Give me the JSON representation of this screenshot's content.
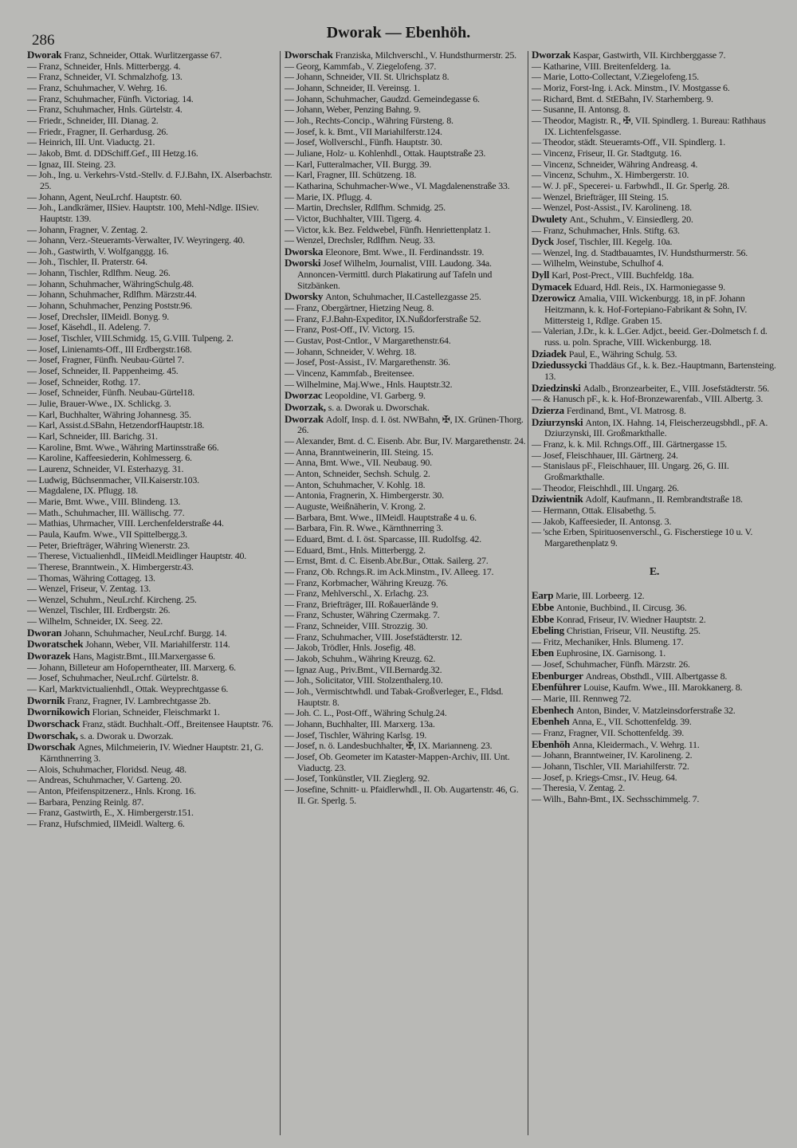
{
  "page_number": "286",
  "title": "Dworak — Ebenhöh.",
  "columns": [
    [
      {
        "h": "Dworak",
        "t": "Franz, Schneider, Ottak. Wurlitzergasse 67."
      },
      {
        "t": "— Franz, Schneider, Hnls. Mitterbergg. 4."
      },
      {
        "t": "— Franz, Schneider, VI. Schmalzhofg. 13."
      },
      {
        "t": "— Franz, Schuhmacher, V. Wehrg. 16."
      },
      {
        "t": "— Franz, Schuhmacher, Fünfh. Victoriag. 14."
      },
      {
        "t": "— Franz, Schuhmacher, Hnls. Gürtelstr. 4."
      },
      {
        "t": "— Friedr., Schneider, III. Dianag. 2."
      },
      {
        "t": "— Friedr., Fragner, II. Gerhardusg. 26."
      },
      {
        "t": "— Heinrich, III. Unt. Viaductg. 21."
      },
      {
        "t": "— Jakob, Bmt. d. DDSchiff.Gef., III Hetzg.16."
      },
      {
        "t": "— Ignaz, III. Steing. 23."
      },
      {
        "t": "— Joh., Ing. u. Verkehrs-Vstd.-Stellv. d. F.J.Bahn, IX. Alserbachstr. 25."
      },
      {
        "t": "— Johann, Agent, NeuLrchf. Hauptstr. 60."
      },
      {
        "t": "— Joh., Landkrämer, IISiev. Hauptstr. 100, Mehl-Ndlge. IISiev. Hauptstr. 139."
      },
      {
        "t": "— Johann, Fragner, V. Zentag. 2."
      },
      {
        "t": "— Johann, Verz.-Steueramts-Verwalter, IV. Weyringerg. 40."
      },
      {
        "t": "— Joh., Gastwirth, V. Wolfganggg. 16."
      },
      {
        "t": "— Joh., Tischler, II. Praterstr. 64."
      },
      {
        "t": "— Johann, Tischler, Rdlfhm. Neug. 26."
      },
      {
        "t": "— Johann, Schuhmacher, WähringSchulg.48."
      },
      {
        "t": "— Johann, Schuhmacher, Rdlfhm. Märzstr.44."
      },
      {
        "t": "— Johann, Schuhmacher, Penzing Poststr.96."
      },
      {
        "t": "— Josef, Drechsler, IIMeidl. Bonyg. 9."
      },
      {
        "t": "— Josef, Käsehdl., II. Adeleng. 7."
      },
      {
        "t": "— Josef, Tischler, VIII.Schmidg. 15, G.VIII. Tulpeng. 2."
      },
      {
        "t": "— Josef, Linienamts-Off., III Erdbergstr.168."
      },
      {
        "t": "— Josef, Fragner, Fünfh. Neubau-Gürtel 7."
      },
      {
        "t": "— Josef, Schneider, II. Pappenheimg. 45."
      },
      {
        "t": "— Josef, Schneider, Rothg. 17."
      },
      {
        "t": "— Josef, Schneider, Fünfh. Neubau-Gürtel18."
      },
      {
        "t": "— Julie, Brauer-Wwe., IX. Schlickg. 3."
      },
      {
        "t": "— Karl, Buchhalter, Währing Johannesg. 35."
      },
      {
        "t": "— Karl, Assist.d.SBahn, HetzendorfHauptstr.18."
      },
      {
        "t": "— Karl, Schneider, III. Barichg. 31."
      },
      {
        "t": "— Karoline, Bmt. Wwe., Währing Martinsstraße 66."
      },
      {
        "t": "— Karoline, Kaffeesiederin, Kohlmesserg. 6."
      },
      {
        "t": "— Laurenz, Schneider, VI. Esterhazyg. 31."
      },
      {
        "t": "— Ludwig, Büchsenmacher, VII.Kaiserstr.103."
      },
      {
        "t": "— Magdalene, IX. Pflugg. 18."
      },
      {
        "t": "— Marie, Bmt. Wwe., VIII. Blindeng. 13."
      },
      {
        "t": "— Math., Schuhmacher, III. Wällischg. 77."
      },
      {
        "t": "— Mathias, Uhrmacher, VIII. Lerchenfelderstraße 44."
      },
      {
        "t": "— Paula, Kaufm. Wwe., VII Spittelbergg.3."
      },
      {
        "t": "— Peter, Briefträger, Währing Wienerstr. 23."
      },
      {
        "t": "— Therese, Victualienhdl., IIMeidl.Meidlinger Hauptstr. 40."
      },
      {
        "t": "— Therese, Branntwein., X. Himbergerstr.43."
      },
      {
        "t": "— Thomas, Währing Cottageg. 13."
      },
      {
        "t": "— Wenzel, Friseur, V. Zentag. 13."
      },
      {
        "t": "— Wenzel, Schuhm., NeuLrchf. Kircheng. 25."
      },
      {
        "t": "— Wenzel, Tischler, III. Erdbergstr. 26."
      },
      {
        "t": "— Wilhelm, Schneider, IX. Seeg. 22."
      },
      {
        "h": "Dworan",
        "t": "Johann, Schuhmacher, NeuLrchf. Burgg. 14."
      },
      {
        "h": "Dworatschek",
        "t": "Johann, Weber, VII. Mariahilferstr. 114."
      },
      {
        "h": "Dworazek",
        "t": "Hans, Magistr.Bmt., III.Marxergasse 6."
      },
      {
        "t": "— Johann, Billeteur am Hofoperntheater, III. Marxerg. 6."
      },
      {
        "t": "— Josef, Schuhmacher, NeuLrchf. Gürtelstr. 8."
      },
      {
        "t": "— Karl, Marktvictualienhdl., Ottak. Weyprechtgasse 6."
      },
      {
        "h": "Dwornik",
        "t": "Franz, Fragner, IV. Lambrechtgasse 2b."
      },
      {
        "h": "Dwornikowich",
        "t": "Florian, Schneider, Fleischmarkt 1."
      },
      {
        "h": "Dworschack",
        "t": "Franz, städt. Buchhalt.-Off., Breitensee Hauptstr. 76."
      },
      {
        "h": "Dworschak,",
        "t": "s. a. Dworak u. Dworzak."
      },
      {
        "h": "Dworschak",
        "t": "Agnes, Milchmeierin, IV. Wiedner Hauptstr. 21, G. Kärnthnerring 3."
      },
      {
        "t": "— Alois, Schuhmacher, Floridsd. Neug. 48."
      },
      {
        "t": "— Andreas, Schuhmacher, V. Garteng. 20."
      },
      {
        "t": "— Anton, Pfeifenspitzenerz., Hnls. Krong. 16."
      },
      {
        "t": "— Barbara, Penzing Reinlg. 87."
      },
      {
        "t": "— Franz, Gastwirth, E., X. Himbergerstr.151."
      },
      {
        "t": "— Franz, Hufschmied, IIMeidl. Walterg. 6."
      }
    ],
    [
      {
        "h": "Dworschak",
        "t": "Franziska, Milchverschl., V. Hundsthurmerstr. 25."
      },
      {
        "t": "— Georg, Kammfab., V. Ziegelofeng. 37."
      },
      {
        "t": "— Johann, Schneider, VII. St. Ulrichsplatz 8."
      },
      {
        "t": "— Johann, Schneider, II. Vereinsg. 1."
      },
      {
        "t": "— Johann, Schuhmacher, Gaudzd. Gemeindegasse 6."
      },
      {
        "t": "— Johann, Weber, Penzing Bahng. 9."
      },
      {
        "t": "— Joh., Rechts-Concip., Währing Fürsteng. 8."
      },
      {
        "t": "— Josef, k. k. Bmt., VII Mariahilferstr.124."
      },
      {
        "t": "— Josef, Wollverschl., Fünfh. Hauptstr. 30."
      },
      {
        "t": "— Juliane, Holz- u. Kohlenhdl., Ottak. Hauptstraße 23."
      },
      {
        "t": "— Karl, Futteralmacher, VII. Burgg. 39."
      },
      {
        "t": "— Karl, Fragner, III. Schützeng. 18."
      },
      {
        "t": "— Katharina, Schuhmacher-Wwe., VI. Magdalenenstraße 33."
      },
      {
        "t": "— Marie, IX. Pflugg. 4."
      },
      {
        "t": "— Martin, Drechsler, Rdlfhm. Schmidg. 25."
      },
      {
        "t": "— Victor, Buchhalter, VIII. Tigerg. 4."
      },
      {
        "t": "— Victor, k.k. Bez. Feldwebel, Fünfh. Henriettenplatz 1."
      },
      {
        "t": "— Wenzel, Drechsler, Rdlfhm. Neug. 33."
      },
      {
        "h": "Dworska",
        "t": "Eleonore, Bmt. Wwe., II. Ferdinandsstr. 19."
      },
      {
        "h": "Dworski",
        "t": "Josef Wilhelm, Journalist, VIII. Laudong. 34a. Annoncen-Vermittl. durch Plakatirung auf Tafeln und Sitzbänken."
      },
      {
        "h": "Dworsky",
        "t": "Anton, Schuhmacher, II.Castellezgasse 25."
      },
      {
        "t": "— Franz, Obergärtner, Hietzing Neug. 8."
      },
      {
        "t": "— Franz, F.J.Bahn-Expeditor, IX.Nußdorferstraße 52."
      },
      {
        "t": "— Franz, Post-Off., IV. Victorg. 15."
      },
      {
        "t": "— Gustav, Post-Cntlor., V Margarethenstr.64."
      },
      {
        "t": "— Johann, Schneider, V. Wehrg. 18."
      },
      {
        "t": "— Josef, Post-Assist., IV. Margarethenstr. 36."
      },
      {
        "t": "— Vincenz, Kammfab., Breitensee."
      },
      {
        "t": "— Wilhelmine, Maj.Wwe., Hnls. Hauptstr.32."
      },
      {
        "h": "Dworzac",
        "t": "Leopoldine, VI. Garberg. 9."
      },
      {
        "h": "Dworzak,",
        "t": "s. a. Dworak u. Dworschak."
      },
      {
        "h": "Dworzak",
        "t": "Adolf, Insp. d. I. öst. NWBahn, ✠, IX. Grünen-Thorg. 26."
      },
      {
        "t": "— Alexander, Bmt. d. C. Eisenb. Abr. Bur, IV. Margarethenstr. 24."
      },
      {
        "t": "— Anna, Branntweinerin, III. Steing. 15."
      },
      {
        "t": "— Anna, Bmt. Wwe., VII. Neubaug. 90."
      },
      {
        "t": "— Anton, Schneider, Sechsh. Schulg. 2."
      },
      {
        "t": "— Anton, Schuhmacher, V. Kohlg. 18."
      },
      {
        "t": "— Antonia, Fragnerin, X. Himbergerstr. 30."
      },
      {
        "t": "— Auguste, Weißnäherin, V. Krong. 2."
      },
      {
        "t": "— Barbara, Bmt. Wwe., IIMeidl. Hauptstraße 4 u. 6."
      },
      {
        "t": "— Barbara, Fin. R. Wwe., Kärnthnerring 3."
      },
      {
        "t": "— Eduard, Bmt. d. I. öst. Sparcasse, III. Rudolfsg. 42."
      },
      {
        "t": "— Eduard, Bmt., Hnls. Mitterbergg. 2."
      },
      {
        "t": "— Ernst, Bmt. d. C. Eisenb.Abr.Bur., Ottak. Sailerg. 27."
      },
      {
        "t": "— Franz, Ob. Rchngs.R. im Ack.Minstm., IV. Alleeg. 17."
      },
      {
        "t": "— Franz, Korbmacher, Währing Kreuzg. 76."
      },
      {
        "t": "— Franz, Mehlverschl., X. Erlachg. 23."
      },
      {
        "t": "— Franz, Briefträger, III. Roßauerlände 9."
      },
      {
        "t": "— Franz, Schuster, Währing Czermakg. 7."
      },
      {
        "t": "— Franz, Schneider, VIII. Strozzig. 30."
      },
      {
        "t": "— Franz, Schuhmacher, VIII. Josefstädterstr. 12."
      },
      {
        "t": "— Jakob, Trödler, Hnls. Josefig. 48."
      },
      {
        "t": "— Jakob, Schuhm., Währing Kreuzg. 62."
      },
      {
        "t": "— Ignaz Aug., Priv.Bmt., VII.Bernardg.32."
      },
      {
        "t": "— Joh., Solicitator, VIII. Stolzenthalerg.10."
      },
      {
        "t": "— Joh., Vermischtwhdl. und Tabak-Großverleger, E., Fldsd. Hauptstr. 8."
      },
      {
        "t": "— Joh. C. L., Post-Off., Währing Schulg.24."
      },
      {
        "t": "— Johann, Buchhalter, III. Marxerg. 13a."
      },
      {
        "t": "— Josef, Tischler, Währing Karlsg. 19."
      },
      {
        "t": "— Josef, n. ö. Landesbuchhalter, ✠, IX. Marianneng. 23."
      },
      {
        "t": "— Josef, Ob. Geometer im Kataster-Mappen-Archiv, III. Unt. Viaductg. 23."
      },
      {
        "t": "— Josef, Tonkünstler, VII. Zieglerg. 92."
      },
      {
        "t": "— Josefine, Schnitt- u. Pfaidlerwhdl., II. Ob. Augartenstr. 46, G. II. Gr. Sperlg. 5."
      }
    ],
    [
      {
        "h": "Dworzak",
        "t": "Kaspar, Gastwirth, VII. Kirchberggasse 7."
      },
      {
        "t": "— Katharine, VIII. Breitenfelderg. 1a."
      },
      {
        "t": "— Marie, Lotto-Collectant, V.Ziegelofeng.15."
      },
      {
        "t": "— Moriz, Forst-Ing. i. Ack. Minstm., IV. Mostgasse 6."
      },
      {
        "t": "— Richard, Bmt. d. StEBahn, IV. Starhemberg. 9."
      },
      {
        "t": "— Susanne, II. Antonsg. 8."
      },
      {
        "t": "— Theodor, Magistr. R., ✠, VII. Spindlerg. 1. Bureau: Rathhaus IX. Lichtenfelsgasse."
      },
      {
        "t": "— Theodor, städt. Steueramts-Off., VII. Spindlerg. 1."
      },
      {
        "t": "— Vincenz, Friseur, II. Gr. Stadtgutg. 16."
      },
      {
        "t": "— Vincenz, Schneider, Währing Andreasg. 4."
      },
      {
        "t": "— Vincenz, Schuhm., X. Himbergerstr. 10."
      },
      {
        "t": "— W. J. pF., Specerei- u. Farbwhdl., II. Gr. Sperlg. 28."
      },
      {
        "t": "— Wenzel, Briefträger, III Steing. 15."
      },
      {
        "t": "— Wenzel, Post-Assist., IV. Karolineng. 18."
      },
      {
        "h": "Dwulety",
        "t": "Ant., Schuhm., V. Einsiedlerg. 20."
      },
      {
        "t": "— Franz, Schuhmacher, Hnls. Stiftg. 63."
      },
      {
        "h": "Dyck",
        "t": "Josef, Tischler, III. Kegelg. 10a."
      },
      {
        "t": "— Wenzel, Ing. d. Stadtbauamtes, IV. Hundsthurmerstr. 56."
      },
      {
        "t": "— Wilhelm, Weinstube, Schulhof 4."
      },
      {
        "h": "Dyll",
        "t": "Karl, Post-Prect., VIII. Buchfeldg. 18a."
      },
      {
        "h": "Dymacek",
        "t": "Eduard, Hdl. Reis., IX. Harmoniegasse 9."
      },
      {
        "h": "Dzerowicz",
        "t": "Amalia, VIII. Wickenburgg. 18, in pF. Johann Heitzmann, k. k. Hof-Fortepiano-Fabrikant & Sohn, IV. Mittersteig 1, Rdlge. Graben 15."
      },
      {
        "t": "— Valerian, J.Dr., k. k. L.Ger. Adjct., beeid. Ger.-Dolmetsch f. d. russ. u. poln. Sprache, VIII. Wickenburgg. 18."
      },
      {
        "h": "Dziadek",
        "t": "Paul, E., Währing Schulg. 53."
      },
      {
        "h": "Dziedussycki",
        "t": "Thaddäus Gf., k. k. Bez.-Hauptmann, Bartensteing. 13."
      },
      {
        "h": "Dziedzinski",
        "t": "Adalb., Bronzearbeiter, E., VIII. Josefstädterstr. 56."
      },
      {
        "t": "— & Hanusch pF., k. k. Hof-Bronzewarenfab., VIII. Albertg. 3."
      },
      {
        "h": "Dzierza",
        "t": "Ferdinand, Bmt., VI. Matrosg. 8."
      },
      {
        "h": "Dziurzynski",
        "t": "Anton, IX. Hahng. 14, Fleischerzeugsbhdl., pF. A. Dziurzynski, III. Großmarkthalle."
      },
      {
        "t": "— Franz, k. k. Mil. Rchngs.Off., III. Gärtnergasse 15."
      },
      {
        "t": "— Josef, Fleischhauer, III. Gärtnerg. 24."
      },
      {
        "t": "— Stanislaus pF., Fleischhauer, III. Ungarg. 26, G. III. Großmarkthalle."
      },
      {
        "t": "— Theodor, Fleischhdl., III. Ungarg. 26."
      },
      {
        "h": "Dziwientnik",
        "t": "Adolf, Kaufmann., II. Rembrandtstraße 18."
      },
      {
        "t": "— Hermann, Ottak. Elisabethg. 5."
      },
      {
        "t": "— Jakob, Kaffeesieder, II. Antonsg. 3."
      },
      {
        "t": "— 'sche Erben, Spirituosenverschl., G. Fischerstiege 10 u. V. Margarethenplatz 9."
      },
      {
        "section": "E."
      },
      {
        "h": "Earp",
        "t": "Marie, III. Lorbeerg. 12."
      },
      {
        "h": "Ebbe",
        "t": "Antonie, Buchbind., II. Circusg. 36."
      },
      {
        "h": "Ebbe",
        "t": "Konrad, Friseur, IV. Wiedner Hauptstr. 2."
      },
      {
        "h": "Ebeling",
        "t": "Christian, Friseur, VII. Neustiftg. 25."
      },
      {
        "t": "— Fritz, Mechaniker, Hnls. Blumeng. 17."
      },
      {
        "h": "Eben",
        "t": "Euphrosine, IX. Garnisong. 1."
      },
      {
        "t": "— Josef, Schuhmacher, Fünfh. Märzstr. 26."
      },
      {
        "h": "Ebenburger",
        "t": "Andreas, Obsthdl., VIII. Albertgasse 8."
      },
      {
        "h": "Ebenführer",
        "t": "Louise, Kaufm. Wwe., III. Marokkanerg. 8."
      },
      {
        "t": "— Marie, III. Rennweg 72."
      },
      {
        "h": "Ebenhech",
        "t": "Anton, Binder, V. Matzleinsdorferstraße 32."
      },
      {
        "h": "Ebenheh",
        "t": "Anna, E., VII. Schottenfeldg. 39."
      },
      {
        "t": "— Franz, Fragner, VII. Schottenfeldg. 39."
      },
      {
        "h": "Ebenhöh",
        "t": "Anna, Kleidermach., V. Wehrg. 11."
      },
      {
        "t": "— Johann, Branntweiner, IV. Karolineng. 2."
      },
      {
        "t": "— Johann, Tischler, VII. Mariahilferstr. 72."
      },
      {
        "t": "— Josef, p. Kriegs-Cmsr., IV. Heug. 64."
      },
      {
        "t": "— Theresia, V. Zentag. 2."
      },
      {
        "t": "— Wilh., Bahn-Bmt., IX. Sechsschimmelg. 7."
      }
    ]
  ]
}
